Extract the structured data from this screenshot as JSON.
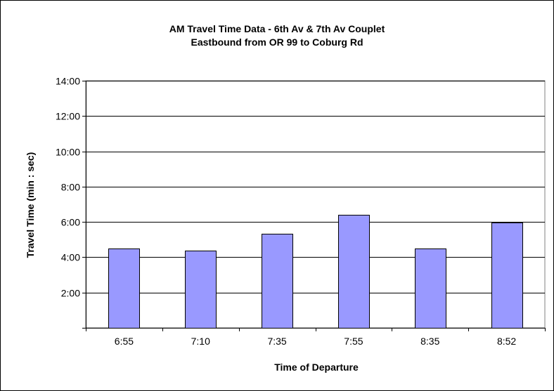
{
  "chart_data": {
    "type": "bar",
    "title": "AM Travel Time Data - 6th Av & 7th Av Couplet",
    "subtitle": "Eastbound from OR 99 to Coburg Rd",
    "xlabel": "Time of Departure",
    "ylabel": "Travel Time (min : sec)",
    "categories": [
      "6:55",
      "7:10",
      "7:35",
      "7:55",
      "8:35",
      "8:52"
    ],
    "values": [
      270,
      262,
      320,
      385,
      270,
      358
    ],
    "value_unit": "seconds",
    "ylim": [
      0,
      840
    ],
    "yticks": [
      {
        "value": 120,
        "label": "2:00"
      },
      {
        "value": 240,
        "label": "4:00"
      },
      {
        "value": 360,
        "label": "6:00"
      },
      {
        "value": 480,
        "label": "8:00"
      },
      {
        "value": 600,
        "label": "10:00"
      },
      {
        "value": 720,
        "label": "12:00"
      },
      {
        "value": 840,
        "label": "14:00"
      }
    ],
    "grid": true,
    "legend": "none",
    "bar_color": "#9999ff"
  }
}
